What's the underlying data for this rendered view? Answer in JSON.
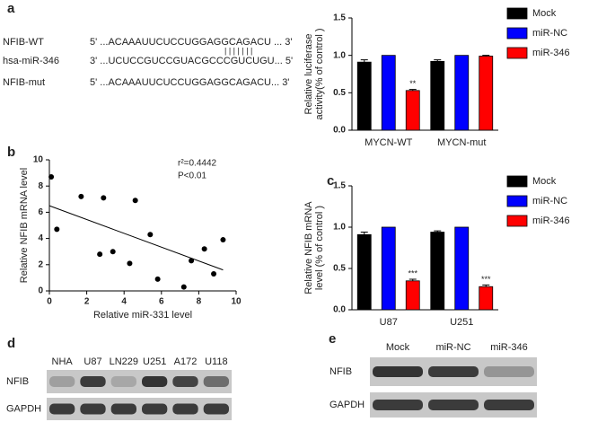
{
  "panel_letters": [
    "a",
    "b",
    "c",
    "d",
    "e"
  ],
  "sequences": {
    "rows": [
      {
        "name": "NFIB-WT",
        "seq": "5' ...ACAAAUUCUCCUGGAGGCAGACU ... 3'"
      },
      {
        "name": "hsa-miR-346",
        "seq": "3' ...UCUCCGUCCGUACGCCCGUCUGU... 5'"
      },
      {
        "name": "NFIB-mut",
        "seq": "5' ...ACAAAUUCUCCUGGAGGCAGACU... 3'"
      }
    ],
    "pairing": "| | | | | | |"
  },
  "chart_data": [
    {
      "type": "bar",
      "ylabel": [
        "Relative luciferase",
        "activity(% of control )"
      ],
      "categories": [
        "MYCN-WT",
        "MYCN-mut"
      ],
      "series": [
        {
          "name": "Mock",
          "color": "#000000",
          "values": [
            0.91,
            0.92
          ],
          "errors": [
            0.03,
            0.02
          ],
          "value_annotations": [
            null,
            null
          ]
        },
        {
          "name": "miR-NC",
          "color": "#0000ff",
          "values": [
            1.0,
            1.0
          ],
          "errors": [
            null,
            null
          ],
          "value_annotations": [
            null,
            null
          ]
        },
        {
          "name": "miR-346",
          "color": "#ff0000",
          "values": [
            0.53,
            0.99
          ],
          "errors": [
            0.015,
            0.01
          ],
          "value_annotations": [
            "**",
            null
          ]
        }
      ],
      "ylim": [
        0,
        1.5
      ],
      "yticks": [
        {
          "value": 0,
          "label": "0.0"
        },
        {
          "value": 0.5,
          "label": "0.5"
        },
        {
          "value": 1,
          "label": "1.0"
        },
        {
          "value": 1.5,
          "label": "1.5"
        }
      ],
      "legend": "right"
    },
    {
      "type": "scatter",
      "xlabel": "Relative miR-331 level",
      "ylabel": "Relative NFIB mRNA level",
      "annotations": [
        "r²=0.4442",
        "P<0.01"
      ],
      "x": [
        0.1,
        0.4,
        1.7,
        2.7,
        2.9,
        3.4,
        4.3,
        4.6,
        5.4,
        5.8,
        7.2,
        7.6,
        8.3,
        8.8,
        9.3
      ],
      "y": [
        8.7,
        4.7,
        7.2,
        2.8,
        7.1,
        3.0,
        2.1,
        6.9,
        4.3,
        0.9,
        0.3,
        2.3,
        3.2,
        1.3,
        3.9
      ],
      "fit_line": {
        "x": [
          0,
          9.3
        ],
        "y": [
          6.5,
          1.6
        ]
      },
      "color": "#000000",
      "xlim": [
        0,
        10
      ],
      "ylim": [
        0,
        10
      ],
      "xticks": [
        0,
        2,
        4,
        6,
        8,
        10
      ],
      "yticks": [
        0,
        2,
        4,
        6,
        8,
        10
      ]
    },
    {
      "type": "bar",
      "ylabel": [
        "Relative NFIB mRNA",
        "level (% of control )"
      ],
      "categories": [
        "U87",
        "U251"
      ],
      "series": [
        {
          "name": "Mock",
          "color": "#000000",
          "values": [
            0.91,
            0.94
          ],
          "errors": [
            0.03,
            0.015
          ],
          "value_annotations": [
            null,
            null
          ]
        },
        {
          "name": "miR-NC",
          "color": "#0000ff",
          "values": [
            1.0,
            1.0
          ],
          "errors": [
            null,
            null
          ],
          "value_annotations": [
            null,
            null
          ]
        },
        {
          "name": "miR-346",
          "color": "#ff0000",
          "values": [
            0.35,
            0.28
          ],
          "errors": [
            0.02,
            0.02
          ],
          "value_annotations": [
            "***",
            "***"
          ]
        }
      ],
      "ylim": [
        0,
        1.5
      ],
      "yticks": [
        {
          "value": 0,
          "label": "0.0"
        },
        {
          "value": 0.5,
          "label": "0.5"
        },
        {
          "value": 1,
          "label": "1.0"
        },
        {
          "value": 1.5,
          "label": "1.5"
        }
      ],
      "legend": "right"
    }
  ],
  "blots": [
    {
      "lanes": [
        "NHA",
        "U87",
        "LN229",
        "U251",
        "A172",
        "U118"
      ],
      "rows": [
        "NFIB",
        "GAPDH"
      ]
    },
    {
      "lanes": [
        "Mock",
        "miR-NC",
        "miR-346"
      ],
      "rows": [
        "NFIB",
        "GAPDH"
      ]
    }
  ]
}
